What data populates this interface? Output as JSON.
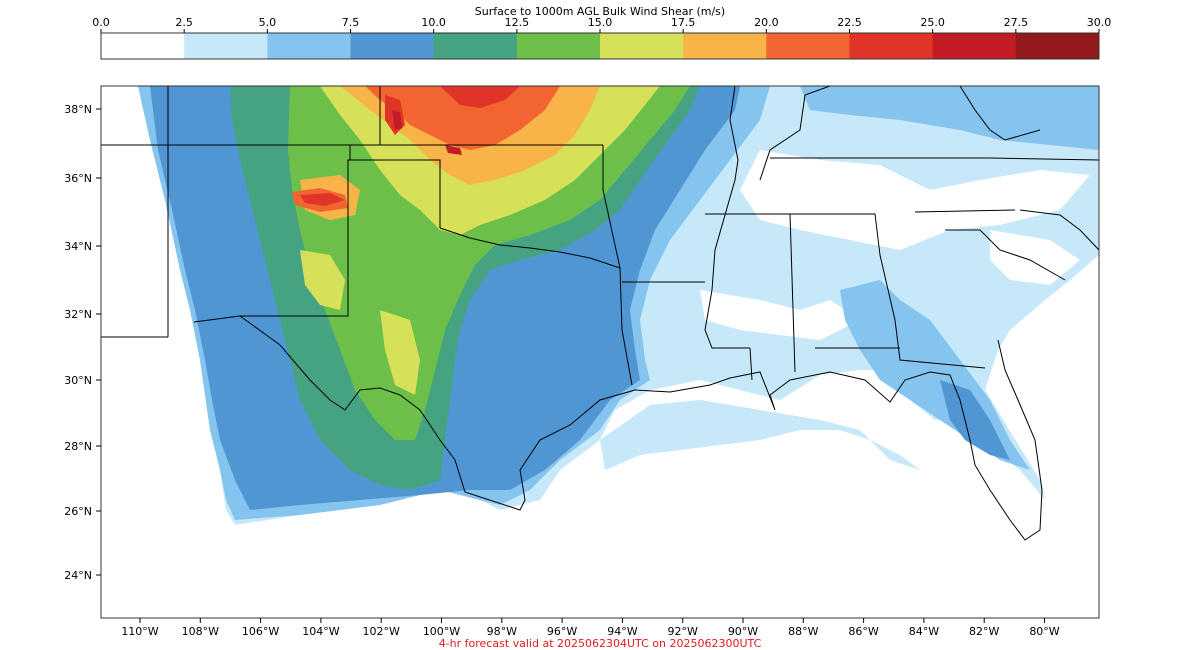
{
  "colorbar": {
    "title": "Surface to 1000m AGL Bulk Wind Shear (m/s)",
    "ticks": [
      "0.0",
      "2.5",
      "5.0",
      "7.5",
      "10.0",
      "12.5",
      "15.0",
      "17.5",
      "20.0",
      "22.5",
      "25.0",
      "27.5",
      "30.0"
    ],
    "colors": [
      "#ffffff",
      "#c6e8f8",
      "#84c4ee",
      "#5096d3",
      "#46a382",
      "#6cc04a",
      "#d6e058",
      "#f8b449",
      "#f26530",
      "#e03428",
      "#c21b24",
      "#931a1b"
    ]
  },
  "map": {
    "lat_labels": [
      "38°N",
      "36°N",
      "34°N",
      "32°N",
      "30°N",
      "28°N",
      "26°N",
      "24°N"
    ],
    "lon_labels": [
      "110°W",
      "108°W",
      "106°W",
      "104°W",
      "102°W",
      "100°W",
      "98°W",
      "96°W",
      "94°W",
      "92°W",
      "90°W",
      "88°W",
      "86°W",
      "84°W",
      "82°W",
      "80°W"
    ]
  },
  "footer": "4-hr forecast valid at 2025062304UTC on 2025062300UTC"
}
